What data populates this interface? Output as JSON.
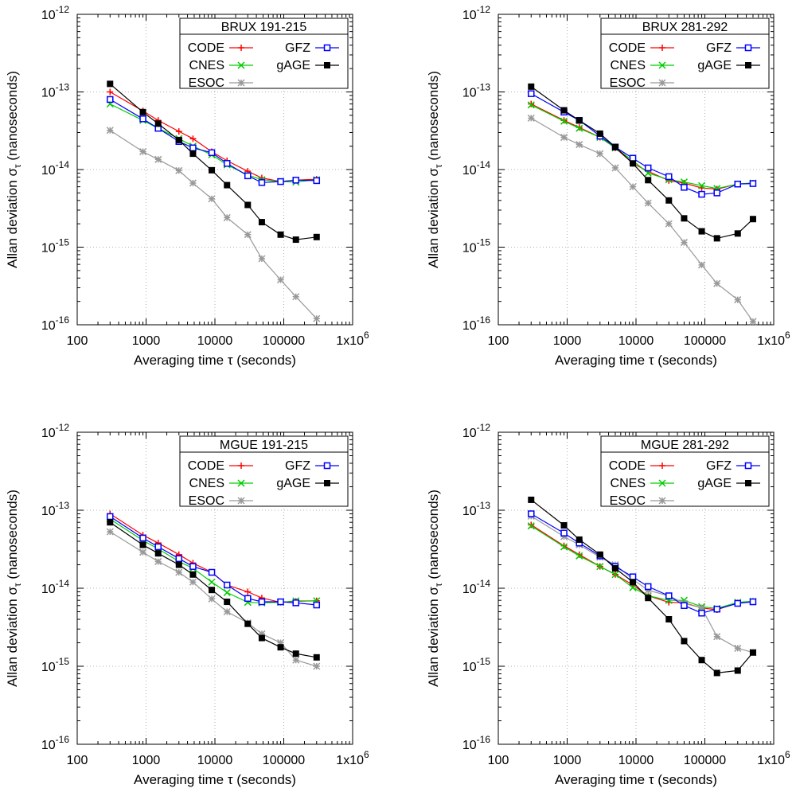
{
  "chart_data": [
    {
      "type": "line",
      "title": "BRUX 191-215",
      "xlabel": "Averaging time τ (seconds)",
      "ylabel": "Allan deviation στ (nanoseconds)",
      "x_scale": "log",
      "y_scale": "log",
      "xlim": [
        100,
        1000000
      ],
      "ylim": [
        1e-16,
        1e-12
      ],
      "x_tick_labels": [
        "100",
        "1000",
        "10000",
        "100000",
        "1x10^6"
      ],
      "y_tick_labels": [
        "10^-16",
        "10^-15",
        "10^-14",
        "10^-13",
        "10^-12"
      ],
      "grid": true,
      "legend": "top-right",
      "series": [
        {
          "name": "CODE",
          "color": "#ff0000",
          "marker": "plus",
          "x": [
            300,
            900,
            1500,
            3000,
            4800,
            9000,
            15000,
            30000,
            48000,
            90000,
            150000,
            300000
          ],
          "y": [
            1e-13,
            5.7e-14,
            4.3e-14,
            3.1e-14,
            2.5e-14,
            1.7e-14,
            1.3e-14,
            9.5e-15,
            7.8e-15,
            7e-15,
            7.3e-15,
            7.5e-15
          ]
        },
        {
          "name": "CNES",
          "color": "#00cc00",
          "marker": "x",
          "x": [
            300,
            900,
            1500,
            3000,
            4800,
            9000,
            15000,
            30000,
            48000,
            90000,
            150000,
            300000
          ],
          "y": [
            7e-14,
            4.3e-14,
            3.4e-14,
            2.5e-14,
            2e-14,
            1.55e-14,
            1.15e-14,
            8.5e-15,
            7.4e-15,
            7e-15,
            6.9e-15,
            7.4e-15
          ]
        },
        {
          "name": "ESOC",
          "color": "#999999",
          "marker": "star",
          "x": [
            300,
            900,
            1500,
            3000,
            4800,
            9000,
            15000,
            30000,
            48000,
            90000,
            150000,
            300000
          ],
          "y": [
            3.2e-14,
            1.7e-14,
            1.35e-14,
            9.7e-15,
            6.7e-15,
            4.2e-15,
            2.4e-15,
            1.45e-15,
            7.1e-16,
            3.8e-16,
            2.3e-16,
            1.2e-16
          ]
        },
        {
          "name": "GFZ",
          "color": "#0000ff",
          "marker": "square-open",
          "x": [
            300,
            900,
            1500,
            3000,
            4800,
            9000,
            15000,
            30000,
            48000,
            90000,
            150000,
            300000
          ],
          "y": [
            8e-14,
            4.5e-14,
            3.4e-14,
            2.3e-14,
            1.9e-14,
            1.65e-14,
            1.2e-14,
            8.3e-15,
            6.8e-15,
            7e-15,
            7.3e-15,
            7.2e-15
          ]
        },
        {
          "name": "gAGE",
          "color": "#000000",
          "marker": "square-filled",
          "x": [
            300,
            900,
            1500,
            3000,
            4800,
            9000,
            15000,
            30000,
            48000,
            90000,
            150000,
            300000
          ],
          "y": [
            1.27e-13,
            5.5e-14,
            3.9e-14,
            2.4e-14,
            1.6e-14,
            9.8e-15,
            6.3e-15,
            3.5e-15,
            2.1e-15,
            1.45e-15,
            1.25e-15,
            1.35e-15
          ]
        }
      ]
    },
    {
      "type": "line",
      "title": "BRUX 281-292",
      "xlabel": "Averaging time τ (seconds)",
      "ylabel": "Allan deviation στ (nanoseconds)",
      "x_scale": "log",
      "y_scale": "log",
      "xlim": [
        100,
        1000000
      ],
      "ylim": [
        1e-16,
        1e-12
      ],
      "x_tick_labels": [
        "100",
        "1000",
        "10000",
        "100000",
        "1x10^6"
      ],
      "y_tick_labels": [
        "10^-16",
        "10^-15",
        "10^-14",
        "10^-13",
        "10^-12"
      ],
      "grid": true,
      "legend": "top-right",
      "series": [
        {
          "name": "CODE",
          "color": "#ff0000",
          "marker": "plus",
          "x": [
            300,
            900,
            1500,
            3000,
            5000,
            9000,
            15000,
            30000,
            50000,
            90000,
            150000,
            300000,
            500000
          ],
          "y": [
            7e-14,
            4.3e-14,
            3.5e-14,
            2.6e-14,
            1.9e-14,
            1.2e-14,
            9.5e-15,
            7.2e-15,
            6.7e-15,
            5.8e-15,
            5.6e-15,
            6.5e-15,
            6.7e-15
          ]
        },
        {
          "name": "CNES",
          "color": "#00cc00",
          "marker": "x",
          "x": [
            300,
            900,
            1500,
            3000,
            5000,
            9000,
            15000,
            30000,
            50000,
            90000,
            150000,
            300000,
            500000
          ],
          "y": [
            6.8e-14,
            4.2e-14,
            3.4e-14,
            2.6e-14,
            1.9e-14,
            1.3e-14,
            9e-15,
            7.4e-15,
            6.9e-15,
            6.2e-15,
            5.7e-15,
            6.5e-15,
            6.7e-15
          ]
        },
        {
          "name": "ESOC",
          "color": "#999999",
          "marker": "star",
          "x": [
            300,
            900,
            1500,
            3000,
            5000,
            9000,
            15000,
            30000,
            50000,
            90000,
            150000,
            300000,
            500000
          ],
          "y": [
            4.6e-14,
            2.6e-14,
            2.1e-14,
            1.6e-14,
            1.05e-14,
            6e-15,
            3.7e-15,
            2e-15,
            1.15e-15,
            5.9e-16,
            3.4e-16,
            2.1e-16,
            1.1e-16
          ]
        },
        {
          "name": "GFZ",
          "color": "#0000ff",
          "marker": "square-open",
          "x": [
            300,
            900,
            1500,
            3000,
            5000,
            9000,
            15000,
            30000,
            50000,
            90000,
            150000,
            300000,
            500000
          ],
          "y": [
            9.5e-14,
            5.5e-14,
            4.3e-14,
            2.7e-14,
            1.95e-14,
            1.4e-14,
            1.05e-14,
            8.1e-15,
            5.9e-15,
            4.8e-15,
            5e-15,
            6.5e-15,
            6.6e-15
          ]
        },
        {
          "name": "gAGE",
          "color": "#000000",
          "marker": "square-filled",
          "x": [
            300,
            900,
            1500,
            3000,
            5000,
            9000,
            15000,
            30000,
            50000,
            90000,
            150000,
            300000,
            500000
          ],
          "y": [
            1.17e-13,
            5.8e-14,
            4.3e-14,
            2.9e-14,
            1.95e-14,
            1.2e-14,
            7.3e-15,
            4e-15,
            2.35e-15,
            1.6e-15,
            1.3e-15,
            1.5e-15,
            2.3e-15
          ]
        }
      ]
    },
    {
      "type": "line",
      "title": "MGUE 191-215",
      "xlabel": "Averaging time τ (seconds)",
      "ylabel": "Allan deviation στ (nanoseconds)",
      "x_scale": "log",
      "y_scale": "log",
      "xlim": [
        100,
        1000000
      ],
      "ylim": [
        1e-16,
        1e-12
      ],
      "x_tick_labels": [
        "100",
        "1000",
        "10000",
        "100000",
        "1x10^6"
      ],
      "y_tick_labels": [
        "10^-16",
        "10^-15",
        "10^-14",
        "10^-13",
        "10^-12"
      ],
      "grid": true,
      "legend": "top-right",
      "series": [
        {
          "name": "CODE",
          "color": "#ff0000",
          "marker": "plus",
          "x": [
            300,
            900,
            1500,
            3000,
            4800,
            9000,
            15000,
            30000,
            48000,
            90000,
            150000,
            300000
          ],
          "y": [
            9e-14,
            4.8e-14,
            3.8e-14,
            2.7e-14,
            2.1e-14,
            1.6e-14,
            1.1e-14,
            9e-15,
            7.5e-15,
            6.6e-15,
            6.8e-15,
            6.9e-15
          ]
        },
        {
          "name": "CNES",
          "color": "#00cc00",
          "marker": "x",
          "x": [
            300,
            900,
            1500,
            3000,
            4800,
            9000,
            15000,
            30000,
            48000,
            90000,
            150000,
            300000
          ],
          "y": [
            7.7e-14,
            4.1e-14,
            3.2e-14,
            2.2e-14,
            1.8e-14,
            1.2e-14,
            8.8e-15,
            6.6e-15,
            6.5e-15,
            6.6e-15,
            6.9e-15,
            6.9e-15
          ]
        },
        {
          "name": "ESOC",
          "color": "#999999",
          "marker": "star",
          "x": [
            300,
            900,
            1500,
            3000,
            4800,
            9000,
            15000,
            30000,
            48000,
            90000,
            150000,
            300000
          ],
          "y": [
            5.3e-14,
            2.9e-14,
            2.2e-14,
            1.6e-14,
            1.2e-14,
            7.3e-15,
            5e-15,
            3.6e-15,
            2.6e-15,
            2e-15,
            1.2e-15,
            1e-15
          ]
        },
        {
          "name": "GFZ",
          "color": "#0000ff",
          "marker": "square-open",
          "x": [
            300,
            900,
            1500,
            3000,
            4800,
            9000,
            15000,
            30000,
            48000,
            90000,
            150000,
            300000
          ],
          "y": [
            8.3e-14,
            4.4e-14,
            3.4e-14,
            2.4e-14,
            1.9e-14,
            1.6e-14,
            1.1e-14,
            7.4e-15,
            6.7e-15,
            6.7e-15,
            6.5e-15,
            6.1e-15
          ]
        },
        {
          "name": "gAGE",
          "color": "#000000",
          "marker": "square-filled",
          "x": [
            300,
            900,
            1500,
            3000,
            4800,
            9000,
            15000,
            30000,
            48000,
            90000,
            150000,
            300000
          ],
          "y": [
            7e-14,
            3.6e-14,
            2.8e-14,
            2e-14,
            1.5e-14,
            9.5e-15,
            6.7e-15,
            3.5e-15,
            2.3e-15,
            1.75e-15,
            1.45e-15,
            1.3e-15
          ]
        }
      ]
    },
    {
      "type": "line",
      "title": "MGUE 281-292",
      "xlabel": "Averaging time τ (seconds)",
      "ylabel": "Allan deviation στ (nanoseconds)",
      "x_scale": "log",
      "y_scale": "log",
      "xlim": [
        100,
        1000000
      ],
      "ylim": [
        1e-16,
        1e-12
      ],
      "x_tick_labels": [
        "100",
        "1000",
        "10000",
        "100000",
        "1x10^6"
      ],
      "y_tick_labels": [
        "10^-16",
        "10^-15",
        "10^-14",
        "10^-13",
        "10^-12"
      ],
      "grid": true,
      "legend": "top-right",
      "series": [
        {
          "name": "CODE",
          "color": "#ff0000",
          "marker": "plus",
          "x": [
            300,
            900,
            1500,
            3000,
            5000,
            9000,
            15000,
            30000,
            50000,
            90000,
            150000,
            300000,
            500000
          ],
          "y": [
            6.5e-14,
            3.5e-14,
            2.7e-14,
            1.9e-14,
            1.5e-14,
            1.1e-14,
            8e-15,
            6.6e-15,
            6.5e-15,
            5.6e-15,
            5.3e-15,
            6.5e-15,
            6.8e-15
          ]
        },
        {
          "name": "CNES",
          "color": "#00cc00",
          "marker": "x",
          "x": [
            300,
            900,
            1500,
            3000,
            5000,
            9000,
            15000,
            30000,
            50000,
            90000,
            150000,
            300000,
            500000
          ],
          "y": [
            6.3e-14,
            3.4e-14,
            2.6e-14,
            1.9e-14,
            1.5e-14,
            1.02e-14,
            8e-15,
            7e-15,
            7e-15,
            5.8e-15,
            5.5e-15,
            6.6e-15,
            6.8e-15
          ]
        },
        {
          "name": "ESOC",
          "color": "#999999",
          "marker": "star",
          "x": [
            300,
            900,
            1500,
            3000,
            5000,
            9000,
            15000,
            30000,
            50000,
            90000,
            150000,
            300000,
            500000
          ],
          "y": [
            8.4e-14,
            4.6e-14,
            3.6e-14,
            2.5e-14,
            2e-14,
            1.3e-14,
            9.4e-15,
            8e-15,
            6.4e-15,
            5.6e-15,
            2.4e-15,
            1.7e-15,
            1.5e-15
          ]
        },
        {
          "name": "GFZ",
          "color": "#0000ff",
          "marker": "square-open",
          "x": [
            300,
            900,
            1500,
            3000,
            5000,
            9000,
            15000,
            30000,
            50000,
            90000,
            150000,
            300000,
            500000
          ],
          "y": [
            9e-14,
            5.1e-14,
            3.8e-14,
            2.6e-14,
            1.9e-14,
            1.4e-14,
            1.05e-14,
            8e-15,
            6e-15,
            4.8e-15,
            5.4e-15,
            6.4e-15,
            6.7e-15
          ]
        },
        {
          "name": "gAGE",
          "color": "#000000",
          "marker": "square-filled",
          "x": [
            300,
            900,
            1500,
            3000,
            5000,
            9000,
            15000,
            30000,
            50000,
            90000,
            150000,
            300000,
            500000
          ],
          "y": [
            1.36e-13,
            6.4e-14,
            4.2e-14,
            2.7e-14,
            1.8e-14,
            1.2e-14,
            7.5e-15,
            4e-15,
            2.1e-15,
            1.2e-15,
            8.2e-16,
            8.8e-16,
            1.5e-15
          ]
        }
      ]
    }
  ]
}
